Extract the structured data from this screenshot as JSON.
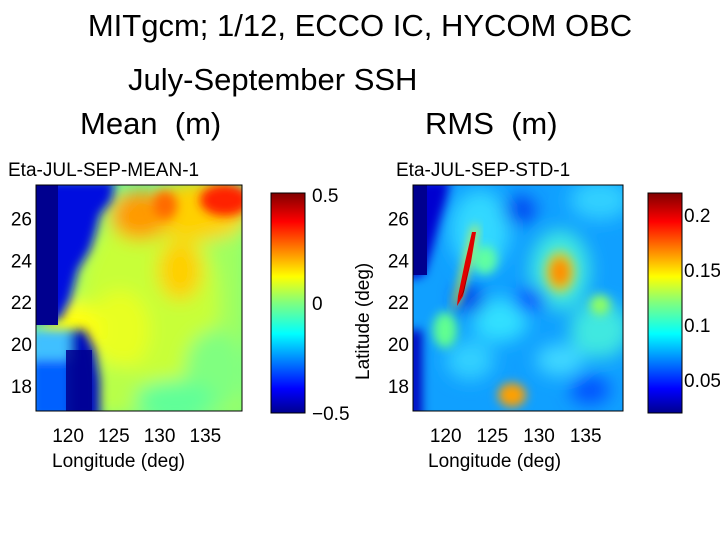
{
  "header": {
    "line1": "MITgcm; 1/12, ECCO IC, HYCOM OBC",
    "line2": "July-September SSH",
    "mean_label": "Mean  (m)",
    "rms_label": "RMS  (m)"
  },
  "chart_data": [
    {
      "type": "heatmap",
      "title": "Eta-JUL-SEP-MEAN-1",
      "xlabel": "Longitude (deg)",
      "ylabel": "",
      "xticks": [
        "120",
        "125",
        "130",
        "135"
      ],
      "xtick_values": [
        120,
        125,
        130,
        135
      ],
      "yticks": [
        "26",
        "24",
        "22",
        "20",
        "18"
      ],
      "ytick_values": [
        26,
        24,
        22,
        20,
        18
      ],
      "xlim": [
        116.5,
        139
      ],
      "ylim": [
        16.8,
        27.6
      ],
      "colormap": "jet",
      "colorbar": {
        "ticks": [
          "0.5",
          "0",
          "−0.5"
        ],
        "tick_values": [
          0.5,
          0,
          -0.5
        ],
        "range": [
          -0.5,
          0.5
        ]
      }
    },
    {
      "type": "heatmap",
      "title": "Eta-JUL-SEP-STD-1",
      "xlabel": "Longitude (deg)",
      "ylabel": "Latitude (deg)",
      "xticks": [
        "120",
        "125",
        "130",
        "135"
      ],
      "xtick_values": [
        120,
        125,
        130,
        135
      ],
      "yticks": [
        "26",
        "24",
        "22",
        "20",
        "18"
      ],
      "ytick_values": [
        26,
        24,
        22,
        20,
        18
      ],
      "xlim": [
        116.5,
        139
      ],
      "ylim": [
        16.8,
        27.6
      ],
      "colormap": "jet",
      "colorbar": {
        "ticks": [
          "0.2",
          "0.15",
          "0.1",
          "0.05"
        ],
        "tick_values": [
          0.2,
          0.15,
          0.1,
          0.05
        ],
        "range": [
          0.02,
          0.22
        ]
      }
    }
  ],
  "colors": {
    "jet_dark_blue": "#00008f",
    "jet_blue": "#0000ff",
    "jet_cyan": "#00ffff",
    "jet_yellow": "#ffff00",
    "jet_red": "#ff0000",
    "jet_dark_red": "#800000"
  }
}
